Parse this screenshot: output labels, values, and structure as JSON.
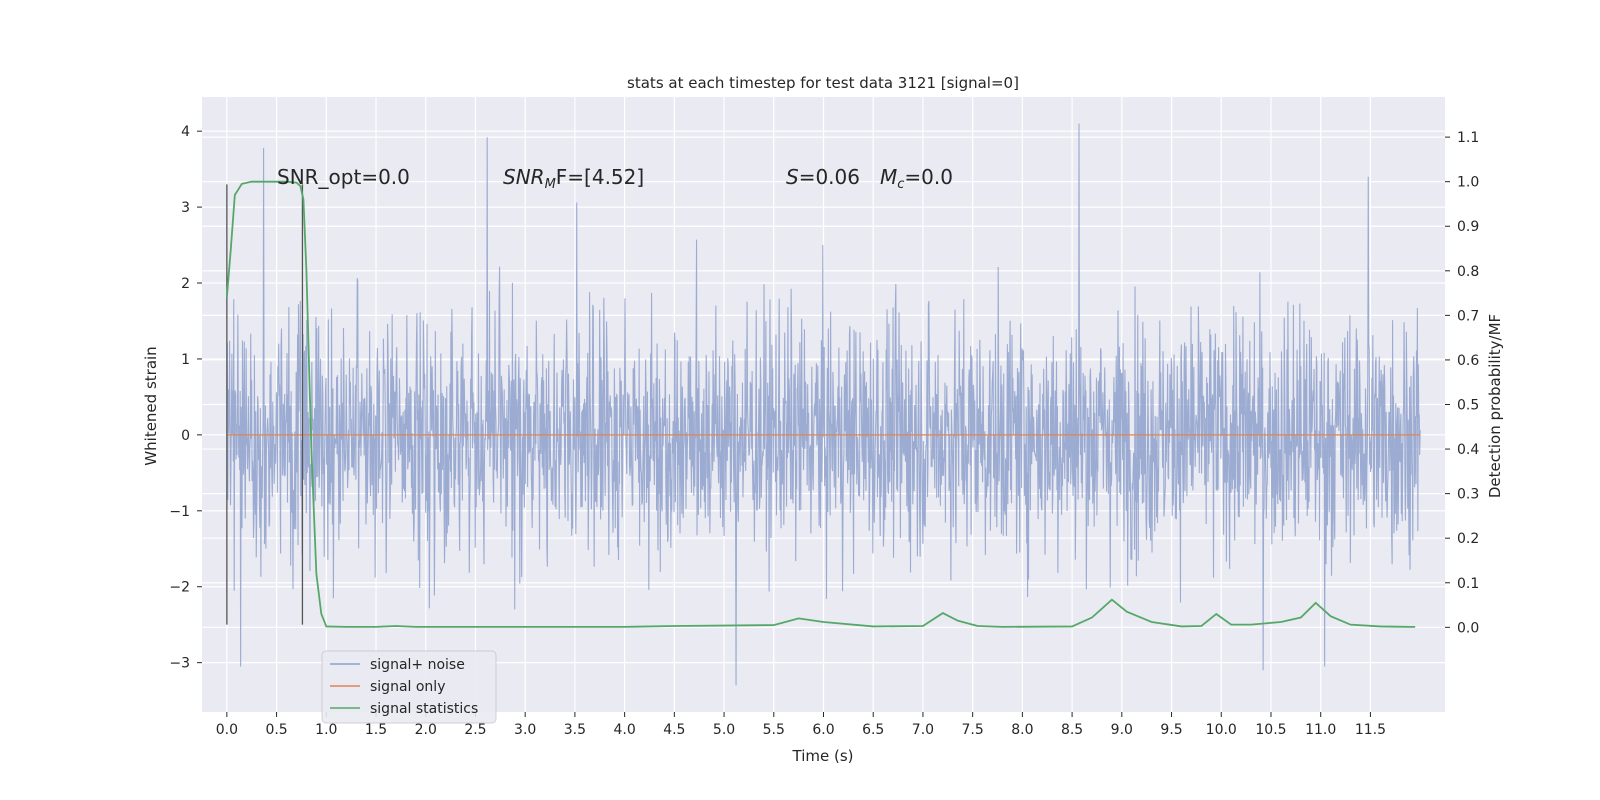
{
  "chart_data": {
    "type": "line",
    "title": "stats at each timestep for test data 3121 [signal=0]",
    "xlabel": "Time (s)",
    "ylabel": "Whitened strain",
    "y2label": "Detection probability/MF",
    "xlim": [
      -0.25,
      12.25
    ],
    "ylim": [
      -3.65,
      4.45
    ],
    "y2lim": [
      -0.19,
      1.19
    ],
    "x_ticks": [
      "0.0",
      "0.5",
      "1.0",
      "1.5",
      "2.0",
      "2.5",
      "3.0",
      "3.5",
      "4.0",
      "4.5",
      "5.0",
      "5.5",
      "6.0",
      "6.5",
      "7.0",
      "7.5",
      "8.0",
      "8.5",
      "9.0",
      "9.5",
      "10.0",
      "10.5",
      "11.0",
      "11.5"
    ],
    "y_ticks": [
      "−3",
      "−2",
      "−1",
      "0",
      "1",
      "2",
      "3",
      "4"
    ],
    "y2_ticks": [
      "0.0",
      "0.1",
      "0.2",
      "0.3",
      "0.4",
      "0.5",
      "0.6",
      "0.7",
      "0.8",
      "0.9",
      "1.0",
      "1.1"
    ],
    "grid": true,
    "legend_position": "lower-left",
    "annotations": {
      "snr_opt": "SNR_opt=0.0",
      "snr_mf": "SNR",
      "snr_mf_sub": "M",
      "snr_mf_rest": "F=[4.52]",
      "s_var": "S",
      "s_val": "=0.06",
      "mc_var": "M",
      "mc_sub": "c",
      "mc_val": "=0.0"
    },
    "series": [
      {
        "name": "signal+ noise",
        "color": "#8da0cb",
        "x_range": [
          0.0,
          12.0
        ],
        "envelope_typical": [
          -1.6,
          1.6
        ],
        "notable_peaks": [
          [
            0.37,
            3.78
          ],
          [
            2.62,
            3.92
          ],
          [
            3.52,
            3.06
          ],
          [
            8.57,
            4.1
          ],
          [
            11.48,
            3.4
          ],
          [
            5.12,
            -3.3
          ],
          [
            0.14,
            -3.05
          ],
          [
            10.42,
            -3.1
          ],
          [
            11.04,
            -3.05
          ]
        ]
      },
      {
        "name": "signal only",
        "color": "#dd8452",
        "x": [
          0.0,
          12.0
        ],
        "y": [
          0.0,
          0.0
        ]
      },
      {
        "name": "signal statistics",
        "color": "#55a868",
        "axis": "right",
        "x": [
          0.0,
          0.04,
          0.08,
          0.15,
          0.25,
          0.4,
          0.6,
          0.7,
          0.74,
          0.77,
          0.8,
          0.85,
          0.9,
          0.95,
          1.0,
          1.2,
          1.5,
          1.7,
          1.9,
          2.5,
          3.0,
          4.0,
          4.5,
          5.0,
          5.5,
          5.75,
          6.0,
          6.5,
          7.0,
          7.2,
          7.35,
          7.55,
          7.8,
          8.5,
          8.7,
          8.9,
          9.05,
          9.3,
          9.6,
          9.8,
          9.95,
          10.1,
          10.3,
          10.6,
          10.8,
          10.95,
          11.1,
          11.3,
          11.6,
          11.9,
          11.95
        ],
        "y": [
          0.74,
          0.85,
          0.97,
          0.995,
          1.0,
          1.0,
          1.0,
          0.998,
          0.99,
          0.96,
          0.8,
          0.4,
          0.12,
          0.03,
          0.002,
          0.001,
          0.001,
          0.003,
          0.001,
          0.001,
          0.001,
          0.001,
          0.003,
          0.004,
          0.005,
          0.02,
          0.012,
          0.002,
          0.003,
          0.032,
          0.015,
          0.003,
          0.001,
          0.002,
          0.022,
          0.062,
          0.035,
          0.012,
          0.002,
          0.003,
          0.03,
          0.006,
          0.006,
          0.012,
          0.022,
          0.055,
          0.025,
          0.006,
          0.002,
          0.001,
          0.001
        ]
      }
    ],
    "vertical_markers": [
      {
        "x": 0.0,
        "y_range": [
          -2.5,
          3.3
        ],
        "color": "#555555"
      },
      {
        "x": 0.76,
        "y_range": [
          -2.5,
          3.3
        ],
        "color": "#555555"
      }
    ]
  }
}
